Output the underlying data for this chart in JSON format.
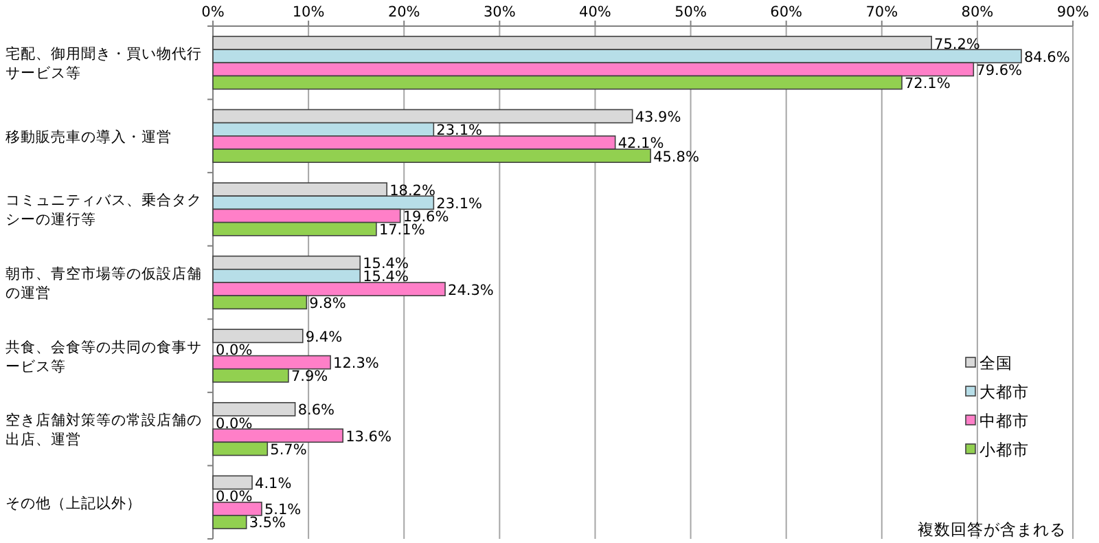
{
  "chart_data": {
    "type": "bar",
    "orientation": "horizontal",
    "categories": [
      "宅配、御用聞き・買い物代行サービス等",
      "移動販売車の導入・運営",
      "コミュニティバス、乗合タクシーの運行等",
      "朝市、青空市場等の仮設店舗の運営",
      "共食、会食等の共同の食事サービス等",
      "空き店舗対策等の常設店舗の出店、運営",
      "その他（上記以外）"
    ],
    "series": [
      {
        "name": "全国",
        "color": "#d9d9d9",
        "values": [
          75.2,
          43.9,
          18.2,
          15.4,
          9.4,
          8.6,
          4.1
        ],
        "value_labels": [
          "75.2%",
          "43.9%",
          "18.2%",
          "15.4%",
          "9.4%",
          "8.6%",
          "4.1%"
        ]
      },
      {
        "name": "大都市",
        "color": "#b7dee8",
        "values": [
          84.6,
          23.1,
          23.1,
          15.4,
          0.0,
          0.0,
          0.0
        ],
        "value_labels": [
          "84.6%",
          "23.1%",
          "23.1%",
          "15.4%",
          "0.0%",
          "0.0%",
          "0.0%"
        ]
      },
      {
        "name": "中都市",
        "color": "#ff7fc8",
        "values": [
          79.6,
          42.1,
          19.6,
          24.3,
          12.3,
          13.6,
          5.1
        ],
        "value_labels": [
          "79.6%",
          "42.1%",
          "19.6%",
          "24.3%",
          "12.3%",
          "13.6%",
          "5.1%"
        ]
      },
      {
        "name": "小都市",
        "color": "#92d050",
        "values": [
          72.1,
          45.8,
          17.1,
          9.8,
          7.9,
          5.7,
          3.5
        ],
        "value_labels": [
          "72.1%",
          "45.8%",
          "17.1%",
          "9.8%",
          "7.9%",
          "5.7%",
          "3.5%"
        ]
      }
    ],
    "xlim": [
      0,
      90
    ],
    "xticks": [
      {
        "value": 0,
        "label": "0%"
      },
      {
        "value": 10,
        "label": "10%"
      },
      {
        "value": 20,
        "label": "20%"
      },
      {
        "value": 30,
        "label": "30%"
      },
      {
        "value": 40,
        "label": "40%"
      },
      {
        "value": 50,
        "label": "50%"
      },
      {
        "value": 60,
        "label": "60%"
      },
      {
        "value": 70,
        "label": "70%"
      },
      {
        "value": 80,
        "label": "80%"
      },
      {
        "value": 90,
        "label": "90%"
      }
    ],
    "grid": "x",
    "legend": "bottom right",
    "annotations": [
      "複数回答が含まれる"
    ]
  }
}
